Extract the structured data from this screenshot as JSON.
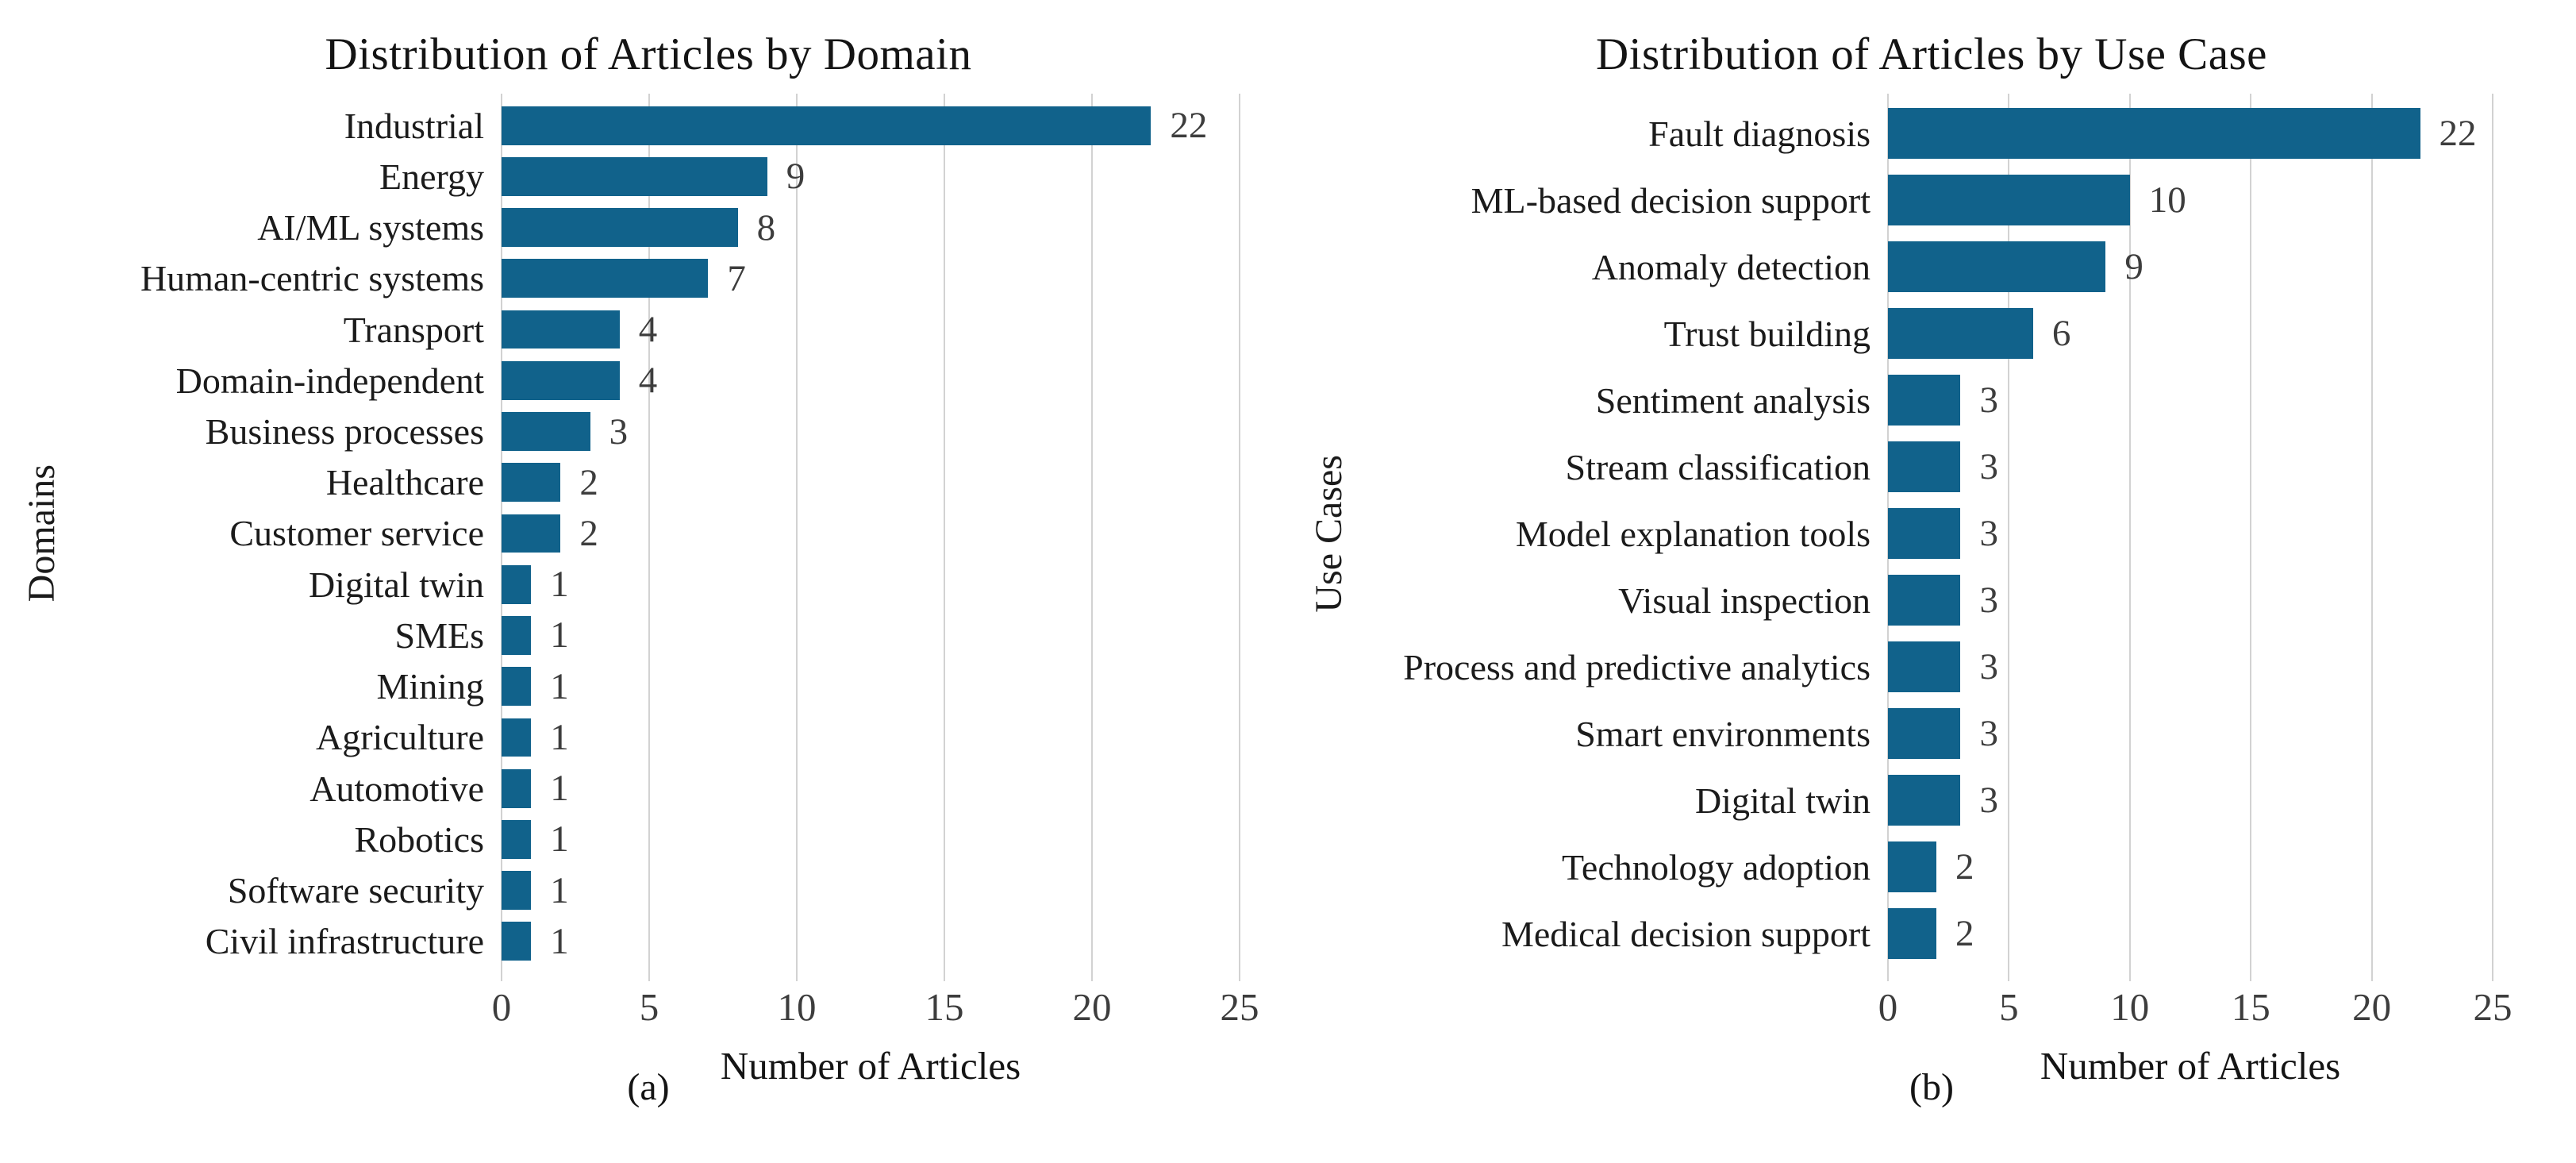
{
  "figure": {
    "bar_color": "#11628b",
    "grid_color": "#d2d2d2",
    "background_color": "#ffffff",
    "text_color": "#1b1b1b",
    "value_label_color": "#3d3d3d"
  },
  "chart_data": [
    {
      "type": "bar",
      "orientation": "horizontal",
      "title": "Distribution of Articles by Domain",
      "xlabel": "Number of Articles",
      "ylabel": "Domains",
      "caption": "(a)",
      "xlim": [
        0,
        25
      ],
      "xticks": [
        0,
        5,
        10,
        15,
        20,
        25
      ],
      "grid": true,
      "legend": false,
      "categories": [
        "Industrial",
        "Energy",
        "AI/ML systems",
        "Human-centric systems",
        "Transport",
        "Domain-independent",
        "Business processes",
        "Healthcare",
        "Customer service",
        "Digital twin",
        "SMEs",
        "Mining",
        "Agriculture",
        "Automotive",
        "Robotics",
        "Software security",
        "Civil infrastructure"
      ],
      "values": [
        22,
        9,
        8,
        7,
        4,
        4,
        3,
        2,
        2,
        1,
        1,
        1,
        1,
        1,
        1,
        1,
        1
      ]
    },
    {
      "type": "bar",
      "orientation": "horizontal",
      "title": "Distribution of Articles by Use Case",
      "xlabel": "Number of Articles",
      "ylabel": "Use Cases",
      "caption": "(b)",
      "xlim": [
        0,
        25
      ],
      "xticks": [
        0,
        5,
        10,
        15,
        20,
        25
      ],
      "grid": true,
      "legend": false,
      "categories": [
        "Fault diagnosis",
        "ML-based decision support",
        "Anomaly detection",
        "Trust building",
        "Sentiment analysis",
        "Stream classification",
        "Model explanation tools",
        "Visual inspection",
        "Process and predictive analytics",
        "Smart environments",
        "Digital twin",
        "Technology adoption",
        "Medical decision support"
      ],
      "values": [
        22,
        10,
        9,
        6,
        3,
        3,
        3,
        3,
        3,
        3,
        3,
        2,
        2
      ]
    }
  ]
}
